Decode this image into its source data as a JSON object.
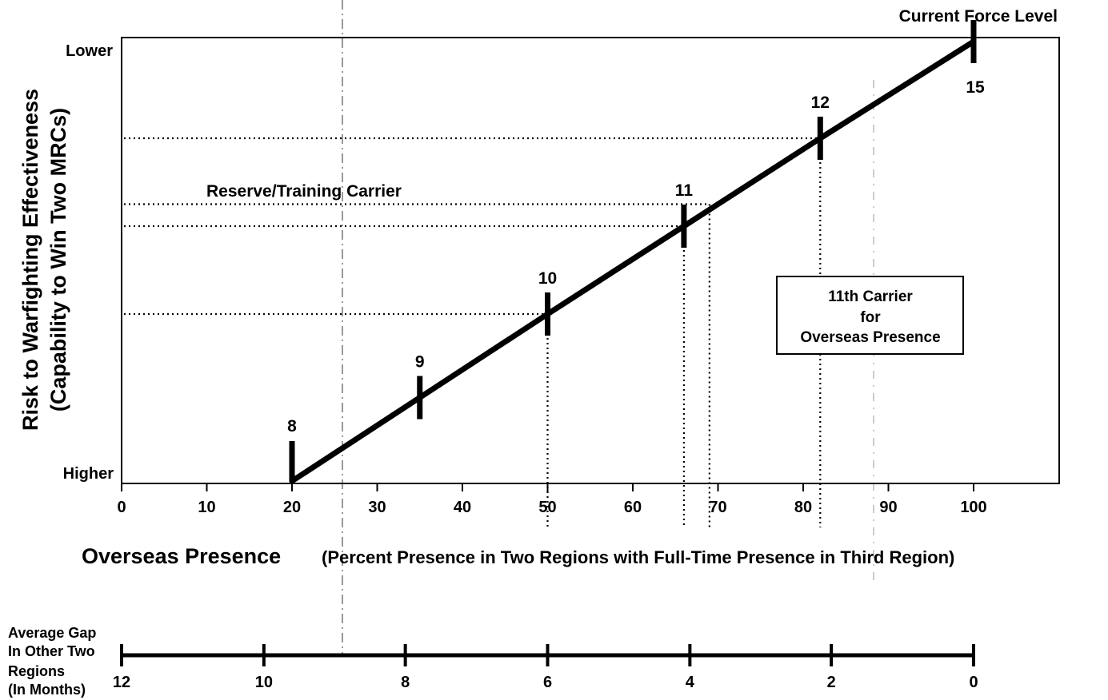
{
  "chart_data": {
    "type": "line",
    "xlabel": "Overseas Presence",
    "xlabel_detail": "(Percent Presence in Two Regions with Full-Time Presence in Third Region)",
    "ylabel_line1": "Risk to Warfighting Effectiveness",
    "ylabel_line2": "(Capability to Win Two MRCs)",
    "y_top_label": "Lower",
    "y_bottom_label": "Higher",
    "xlim": [
      0,
      110
    ],
    "ylim": [
      0,
      1
    ],
    "x_ticks": [
      0,
      10,
      20,
      30,
      40,
      50,
      60,
      70,
      80,
      90,
      100
    ],
    "series": [
      {
        "points": [
          {
            "x": 20,
            "y": 0.0,
            "label": "8"
          },
          {
            "x": 35,
            "y": 0.19,
            "label": "9"
          },
          {
            "x": 50,
            "y": 0.38,
            "label": "10"
          },
          {
            "x": 66,
            "y": 0.58,
            "label": "11"
          },
          {
            "x": 82,
            "y": 0.78,
            "label": "12"
          },
          {
            "x": 100,
            "y": 1.0,
            "label": "15"
          }
        ]
      }
    ],
    "reference_lines": [
      {
        "x": 50,
        "y": 0.38
      },
      {
        "x": 66,
        "y": 0.58
      },
      {
        "x": 82,
        "y": 0.78
      },
      {
        "x": 69,
        "y": 0.63
      }
    ],
    "annotations": {
      "current_force_level": "Current Force Level",
      "reserve_training_carrier": "Reserve/Training Carrier",
      "eleventh_carrier_box": [
        "11th Carrier",
        "for",
        "Overseas Presence"
      ]
    },
    "secondary_axis": {
      "label_lines": [
        "Average Gap",
        "In Other Two",
        "Regions",
        "(In Months)"
      ],
      "ticks": [
        {
          "value": 12,
          "at_x": 0
        },
        {
          "value": 10,
          "at_x": 16.7
        },
        {
          "value": 8,
          "at_x": 33.3
        },
        {
          "value": 6,
          "at_x": 50
        },
        {
          "value": 4,
          "at_x": 66.7
        },
        {
          "value": 2,
          "at_x": 83.3
        },
        {
          "value": 0,
          "at_x": 100
        }
      ]
    }
  }
}
